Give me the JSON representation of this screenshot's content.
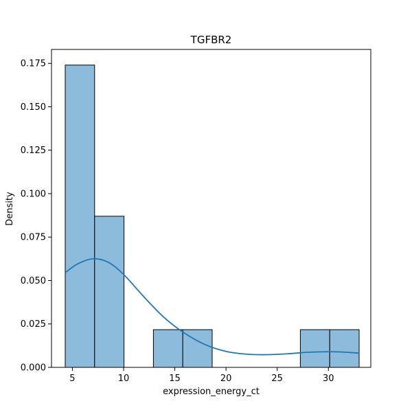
{
  "chart_data": {
    "type": "bar",
    "title": "TGFBR2",
    "xlabel": "expression_energy_ct",
    "ylabel": "Density",
    "xlim": [
      2.96,
      34.14
    ],
    "ylim": [
      0,
      0.183
    ],
    "bar_color": "#8dbbdc",
    "bar_edge_color": "#000000",
    "kde_color": "#1f77b4",
    "bins": [
      {
        "x0": 4.3,
        "x1": 7.17,
        "density": 0.174
      },
      {
        "x0": 7.17,
        "x1": 10.04,
        "density": 0.087
      },
      {
        "x0": 10.04,
        "x1": 12.91,
        "density": 0.0
      },
      {
        "x0": 12.91,
        "x1": 15.78,
        "density": 0.0217
      },
      {
        "x0": 15.78,
        "x1": 18.65,
        "density": 0.0217
      },
      {
        "x0": 18.65,
        "x1": 21.52,
        "density": 0.0
      },
      {
        "x0": 21.52,
        "x1": 24.39,
        "density": 0.0
      },
      {
        "x0": 24.39,
        "x1": 27.26,
        "density": 0.0
      },
      {
        "x0": 27.26,
        "x1": 30.13,
        "density": 0.0217
      },
      {
        "x0": 30.13,
        "x1": 33.0,
        "density": 0.0217
      }
    ],
    "kde": {
      "x": [
        4.3,
        5.5,
        7.0,
        8.5,
        10.0,
        12.0,
        14.0,
        16.0,
        18.0,
        20.0,
        22.0,
        24.0,
        26.0,
        28.0,
        30.0,
        31.5,
        33.0
      ],
      "y": [
        0.0545,
        0.0595,
        0.0625,
        0.0605,
        0.0535,
        0.0405,
        0.0285,
        0.0195,
        0.013,
        0.0092,
        0.0076,
        0.0073,
        0.0078,
        0.0087,
        0.009,
        0.0088,
        0.0082
      ]
    },
    "x_ticks": [
      5,
      10,
      15,
      20,
      25,
      30
    ],
    "y_ticks": [
      0.0,
      0.025,
      0.05,
      0.075,
      0.1,
      0.125,
      0.15,
      0.175
    ],
    "x_tick_labels": [
      "5",
      "10",
      "15",
      "20",
      "25",
      "30"
    ],
    "y_tick_labels": [
      "0.000",
      "0.025",
      "0.050",
      "0.075",
      "0.100",
      "0.125",
      "0.150",
      "0.175"
    ],
    "grid": false
  }
}
